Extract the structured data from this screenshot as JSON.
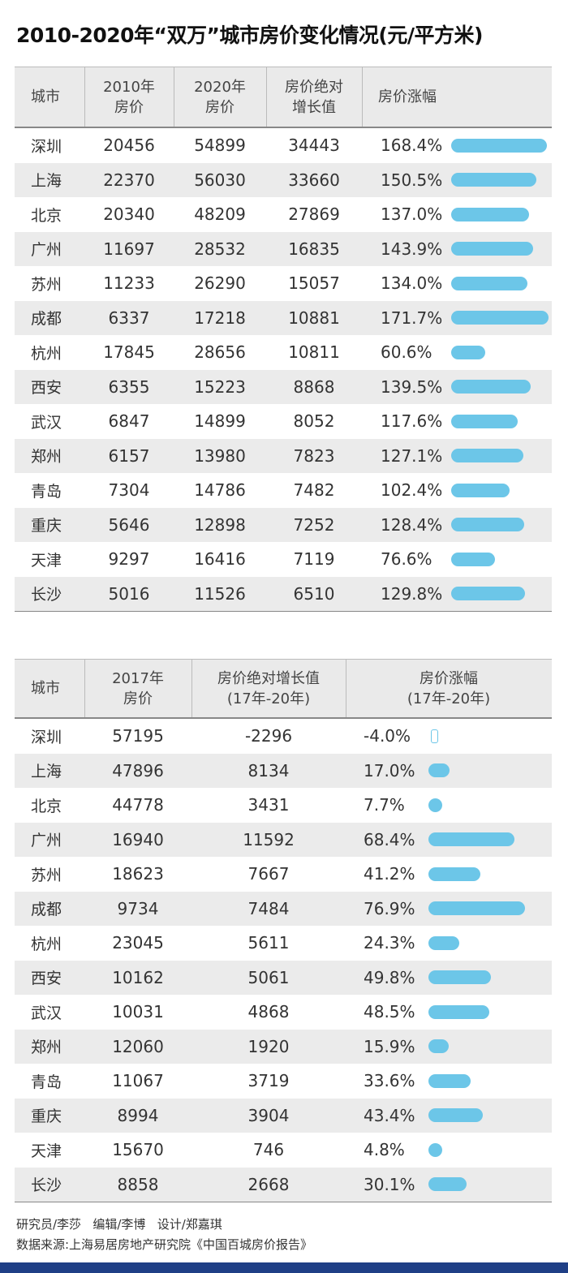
{
  "title": "2010-2020年“双万”城市房价变化情况(元/平方米)",
  "colors": {
    "bar": "#6cc6e8",
    "header_bg": "#eaeaea",
    "row_alt": "#ebebeb",
    "footer_bar": "#1f3f86"
  },
  "table1": {
    "headers": [
      "城市",
      "2010年\n房价",
      "2020年\n房价",
      "房价绝对\n增长值",
      "房价涨幅"
    ]
  },
  "table2": {
    "headers": [
      "城市",
      "2017年\n房价",
      "房价绝对增长值\n(17年-20年)",
      "房价涨幅\n(17年-20年)"
    ]
  },
  "chart_data": [
    {
      "type": "table",
      "columns": [
        "城市",
        "2010年房价",
        "2020年房价",
        "房价绝对增长值",
        "房价涨幅"
      ],
      "rows": [
        {
          "city": "深圳",
          "p2010": "20456",
          "p2020": "54899",
          "abs": "34443",
          "pct": "168.4%",
          "pct_value": 168.4
        },
        {
          "city": "上海",
          "p2010": "22370",
          "p2020": "56030",
          "abs": "33660",
          "pct": "150.5%",
          "pct_value": 150.5
        },
        {
          "city": "北京",
          "p2010": "20340",
          "p2020": "48209",
          "abs": "27869",
          "pct": "137.0%",
          "pct_value": 137.0
        },
        {
          "city": "广州",
          "p2010": "11697",
          "p2020": "28532",
          "abs": "16835",
          "pct": "143.9%",
          "pct_value": 143.9
        },
        {
          "city": "苏州",
          "p2010": "11233",
          "p2020": "26290",
          "abs": "15057",
          "pct": "134.0%",
          "pct_value": 134.0
        },
        {
          "city": "成都",
          "p2010": "6337",
          "p2020": "17218",
          "abs": "10881",
          "pct": "171.7%",
          "pct_value": 171.7
        },
        {
          "city": "杭州",
          "p2010": "17845",
          "p2020": "28656",
          "abs": "10811",
          "pct": "60.6%",
          "pct_value": 60.6
        },
        {
          "city": "西安",
          "p2010": "6355",
          "p2020": "15223",
          "abs": "8868",
          "pct": "139.5%",
          "pct_value": 139.5
        },
        {
          "city": "武汉",
          "p2010": "6847",
          "p2020": "14899",
          "abs": "8052",
          "pct": "117.6%",
          "pct_value": 117.6
        },
        {
          "city": "郑州",
          "p2010": "6157",
          "p2020": "13980",
          "abs": "7823",
          "pct": "127.1%",
          "pct_value": 127.1
        },
        {
          "city": "青岛",
          "p2010": "7304",
          "p2020": "14786",
          "abs": "7482",
          "pct": "102.4%",
          "pct_value": 102.4
        },
        {
          "city": "重庆",
          "p2010": "5646",
          "p2020": "12898",
          "abs": "7252",
          "pct": "128.4%",
          "pct_value": 128.4
        },
        {
          "city": "天津",
          "p2010": "9297",
          "p2020": "16416",
          "abs": "7119",
          "pct": "76.6%",
          "pct_value": 76.6
        },
        {
          "city": "长沙",
          "p2010": "5016",
          "p2020": "11526",
          "abs": "6510",
          "pct": "129.8%",
          "pct_value": 129.8
        }
      ]
    },
    {
      "type": "table",
      "columns": [
        "城市",
        "2017年房价",
        "房价绝对增长值(17年-20年)",
        "房价涨幅(17年-20年)"
      ],
      "rows": [
        {
          "city": "深圳",
          "p2017": "57195",
          "abs": "-2296",
          "pct": "-4.0%",
          "pct_value": -4.0
        },
        {
          "city": "上海",
          "p2017": "47896",
          "abs": "8134",
          "pct": "17.0%",
          "pct_value": 17.0
        },
        {
          "city": "北京",
          "p2017": "44778",
          "abs": "3431",
          "pct": "7.7%",
          "pct_value": 7.7
        },
        {
          "city": "广州",
          "p2017": "16940",
          "abs": "11592",
          "pct": "68.4%",
          "pct_value": 68.4
        },
        {
          "city": "苏州",
          "p2017": "18623",
          "abs": "7667",
          "pct": "41.2%",
          "pct_value": 41.2
        },
        {
          "city": "成都",
          "p2017": "9734",
          "abs": "7484",
          "pct": "76.9%",
          "pct_value": 76.9
        },
        {
          "city": "杭州",
          "p2017": "23045",
          "abs": "5611",
          "pct": "24.3%",
          "pct_value": 24.3
        },
        {
          "city": "西安",
          "p2017": "10162",
          "abs": "5061",
          "pct": "49.8%",
          "pct_value": 49.8
        },
        {
          "city": "武汉",
          "p2017": "10031",
          "abs": "4868",
          "pct": "48.5%",
          "pct_value": 48.5
        },
        {
          "city": "郑州",
          "p2017": "12060",
          "abs": "1920",
          "pct": "15.9%",
          "pct_value": 15.9
        },
        {
          "city": "青岛",
          "p2017": "11067",
          "abs": "3719",
          "pct": "33.6%",
          "pct_value": 33.6
        },
        {
          "city": "重庆",
          "p2017": "8994",
          "abs": "3904",
          "pct": "43.4%",
          "pct_value": 43.4
        },
        {
          "city": "天津",
          "p2017": "15670",
          "abs": "746",
          "pct": "4.8%",
          "pct_value": 4.8
        },
        {
          "city": "长沙",
          "p2017": "8858",
          "abs": "2668",
          "pct": "30.1%",
          "pct_value": 30.1
        }
      ]
    }
  ],
  "footer": {
    "credits": "研究员/李莎   编辑/李博   设计/郑嘉琪",
    "source": "数据来源:上海易居房地产研究院《中国百城房价报告》"
  }
}
